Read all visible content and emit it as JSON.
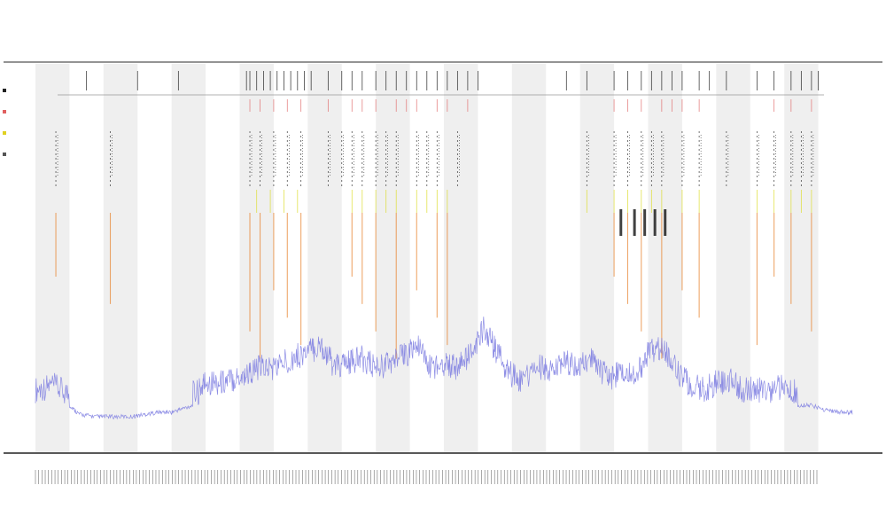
{
  "chart": {
    "title": "",
    "subtitle_1": "",
    "subtitle_2": "",
    "xlabel": "",
    "track_labels": [],
    "legend": [
      {
        "name": "",
        "color": "#222222"
      },
      {
        "name": "",
        "color": "#e06060"
      },
      {
        "name": "",
        "color": "#e0d020"
      },
      {
        "name": "",
        "color": "#555555"
      }
    ]
  },
  "chart_data": {
    "type": "line",
    "title": "",
    "xlabel": "",
    "ylabel": "",
    "grid": false,
    "legend_position": "left",
    "colors": {
      "signal": "#7a7ae0",
      "band_shade": "#efefef",
      "event_dark": "#222222",
      "event_red": "#e07070",
      "event_yellow": "#dddd30",
      "event_orange": "#e88a3a"
    },
    "bands": [
      [
        0,
        1
      ],
      [
        2,
        3
      ],
      [
        4,
        5
      ],
      [
        6,
        7
      ],
      [
        8,
        9
      ],
      [
        10,
        11
      ],
      [
        12,
        13
      ],
      [
        14,
        15
      ],
      [
        16,
        17
      ],
      [
        18,
        19
      ],
      [
        20,
        21
      ],
      [
        22,
        23
      ]
    ],
    "x_range": [
      0,
      24
    ],
    "y_range": [
      0,
      1
    ],
    "series": [
      {
        "type": "line",
        "x": [
          0.0,
          0.5,
          1.0,
          1.3,
          1.8,
          2.2,
          2.8,
          3.2,
          3.6,
          4.0,
          4.4,
          4.8,
          5.0,
          5.4,
          5.8,
          6.2,
          6.6,
          7.0,
          7.5,
          8.0,
          8.4,
          8.8,
          9.2,
          9.6,
          10.0,
          10.4,
          10.8,
          11.2,
          11.6,
          12.0,
          12.4,
          12.8,
          13.2,
          13.5,
          13.9,
          14.3,
          14.8,
          15.2,
          15.6,
          16.0,
          16.4,
          16.8,
          17.2,
          17.6,
          18.0,
          18.4,
          18.8,
          19.2,
          19.6,
          20.0,
          20.4,
          20.8,
          21.2,
          21.6,
          22.0,
          22.4,
          22.8,
          23.2,
          23.6,
          24.0
        ],
        "y": [
          0.1,
          0.12,
          0.08,
          0.04,
          0.03,
          0.03,
          0.03,
          0.04,
          0.05,
          0.05,
          0.07,
          0.09,
          0.14,
          0.13,
          0.15,
          0.17,
          0.2,
          0.2,
          0.24,
          0.27,
          0.3,
          0.2,
          0.22,
          0.24,
          0.2,
          0.22,
          0.25,
          0.3,
          0.2,
          0.22,
          0.2,
          0.26,
          0.38,
          0.28,
          0.18,
          0.14,
          0.2,
          0.18,
          0.22,
          0.2,
          0.24,
          0.15,
          0.18,
          0.16,
          0.26,
          0.3,
          0.2,
          0.12,
          0.1,
          0.13,
          0.14,
          0.1,
          0.1,
          0.1,
          0.11,
          0.08,
          0.08,
          0.06,
          0.05,
          0.05
        ]
      }
    ],
    "event_rows": [
      {
        "row": "top",
        "color": "#222222",
        "x": [
          1.5,
          3.0,
          4.2,
          6.2,
          6.3,
          6.5,
          6.7,
          6.9,
          7.1,
          7.3,
          7.5,
          7.7,
          7.9,
          8.1,
          8.6,
          9.0,
          9.3,
          9.6,
          10.0,
          10.3,
          10.6,
          10.9,
          11.2,
          11.5,
          11.8,
          12.1,
          12.4,
          12.7,
          13.0,
          15.6,
          16.2,
          17.0,
          17.4,
          17.8,
          18.1,
          18.4,
          18.7,
          19.0,
          19.5,
          19.8,
          20.3,
          21.2,
          21.7,
          22.2,
          22.5,
          22.8,
          23.0
        ]
      },
      {
        "row": "red",
        "color": "#e07070",
        "x": [
          6.3,
          6.6,
          7.0,
          7.4,
          7.8,
          8.6,
          9.3,
          9.6,
          10.0,
          10.6,
          10.9,
          11.2,
          11.8,
          12.1,
          12.7,
          17.0,
          17.4,
          17.8,
          18.4,
          18.7,
          19.0,
          19.5,
          21.7,
          22.2,
          22.8
        ]
      },
      {
        "row": "mid",
        "color": "#333333",
        "x": [
          0.6,
          2.2,
          6.3,
          6.6,
          7.0,
          7.4,
          7.8,
          8.6,
          9.0,
          9.3,
          9.6,
          10.0,
          10.3,
          10.6,
          11.2,
          11.5,
          11.8,
          12.4,
          16.2,
          17.0,
          17.4,
          17.8,
          18.1,
          18.4,
          19.0,
          19.5,
          20.3,
          21.2,
          21.7,
          22.2,
          22.5,
          22.8
        ]
      },
      {
        "row": "yellow",
        "color": "#dddd30",
        "x": [
          6.5,
          6.9,
          7.3,
          7.7,
          9.3,
          9.6,
          10.0,
          10.3,
          10.6,
          11.2,
          11.5,
          11.8,
          12.1,
          16.2,
          17.0,
          17.4,
          17.8,
          18.1,
          18.4,
          19.0,
          19.5,
          21.2,
          21.7,
          22.2,
          22.5,
          22.8
        ]
      },
      {
        "row": "orange",
        "color": "#e88a3a",
        "x": [
          0.6,
          2.2,
          6.3,
          6.6,
          7.0,
          7.4,
          7.8,
          9.3,
          9.6,
          10.0,
          10.6,
          11.2,
          11.8,
          12.1,
          17.0,
          17.4,
          17.8,
          18.4,
          19.0,
          19.5,
          21.2,
          21.7,
          22.2,
          22.8
        ]
      }
    ]
  }
}
